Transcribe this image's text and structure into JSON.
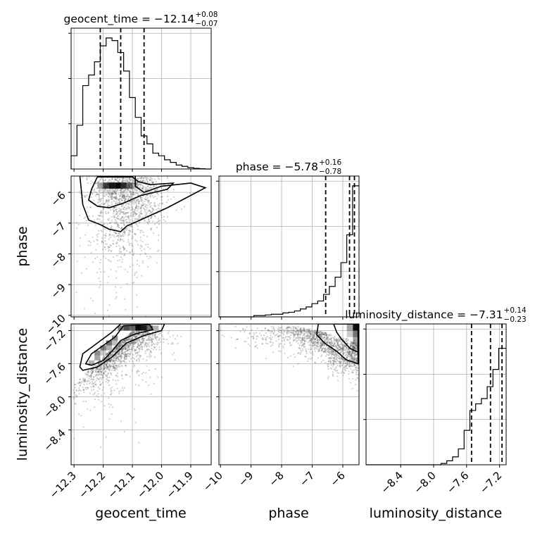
{
  "chart_data": {
    "type": "corner",
    "parameters": [
      "geocent_time",
      "phase",
      "luminosity_distance"
    ],
    "axis_labels": {
      "x": [
        "geocent_time",
        "phase",
        "luminosity_distance"
      ],
      "y": [
        "phase",
        "luminosity_distance"
      ]
    },
    "ranges": {
      "geocent_time": [
        -12.31,
        -11.83
      ],
      "phase": [
        -10.05,
        -5.47
      ],
      "luminosity_distance": [
        -8.82,
        -7.12
      ]
    },
    "ticks": {
      "geocent_time": {
        "values": [
          -12.3,
          -12.2,
          -12.1,
          -12.0,
          -11.9
        ],
        "labels": [
          "−12.3",
          "−12.2",
          "−12.1",
          "−12.0",
          "−11.9"
        ]
      },
      "phase": {
        "values": [
          -10,
          -9,
          -8,
          -7,
          -6
        ],
        "labels": [
          "−10",
          "−9",
          "−8",
          "−7",
          "−6"
        ]
      },
      "luminosity_distance": {
        "values": [
          -8.4,
          -8.0,
          -7.6,
          -7.2
        ],
        "labels": [
          "−8.4",
          "−8.0",
          "−7.6",
          "−7.2"
        ]
      }
    },
    "titles": [
      {
        "param": "geocent_time",
        "main": "geocent_time = −12.14",
        "plus": "+0.08",
        "minus": "−0.07"
      },
      {
        "param": "phase",
        "main": "phase = −5.78",
        "plus": "+0.16",
        "minus": "−0.78"
      },
      {
        "param": "luminosity_distance",
        "main": "luminosity_distance = −7.31",
        "plus": "+0.14",
        "minus": "−0.23"
      }
    ],
    "quantiles": {
      "geocent_time": [
        -12.21,
        -12.14,
        -12.06
      ],
      "phase": [
        -6.56,
        -5.78,
        -5.62
      ],
      "luminosity_distance": [
        -7.54,
        -7.31,
        -7.17
      ]
    },
    "histograms": {
      "geocent_time": {
        "bin_edges": [
          -12.31,
          -12.29,
          -12.27,
          -12.25,
          -12.23,
          -12.21,
          -12.19,
          -12.17,
          -12.15,
          -12.13,
          -12.11,
          -12.09,
          -12.07,
          -12.05,
          -12.03,
          -12.01,
          -11.99,
          -11.97,
          -11.95,
          -11.93,
          -11.91,
          -11.89,
          -11.87,
          -11.85,
          -11.83
        ],
        "counts": [
          0.1,
          0.33,
          0.63,
          0.71,
          0.81,
          0.93,
          0.99,
          0.97,
          0.88,
          0.74,
          0.54,
          0.39,
          0.25,
          0.19,
          0.12,
          0.1,
          0.07,
          0.05,
          0.03,
          0.02,
          0.01,
          0.005,
          0.002,
          0.0
        ]
      },
      "phase": {
        "bin_edges": [
          -10.05,
          -9.86,
          -9.67,
          -9.48,
          -9.29,
          -9.1,
          -8.91,
          -8.72,
          -8.53,
          -8.34,
          -8.15,
          -7.96,
          -7.77,
          -7.58,
          -7.39,
          -7.2,
          -7.01,
          -6.82,
          -6.63,
          -6.44,
          -6.25,
          -6.06,
          -5.87,
          -5.68,
          -5.47
        ],
        "counts": [
          0.0,
          0.0,
          0.0,
          0.0,
          0.0,
          0.0,
          0.01,
          0.01,
          0.015,
          0.02,
          0.02,
          0.03,
          0.035,
          0.045,
          0.06,
          0.075,
          0.1,
          0.12,
          0.17,
          0.23,
          0.3,
          0.41,
          0.62,
          0.99
        ]
      },
      "luminosity_distance": {
        "bin_edges": [
          -8.82,
          -8.75,
          -8.68,
          -8.61,
          -8.54,
          -8.47,
          -8.4,
          -8.33,
          -8.26,
          -8.19,
          -8.12,
          -8.05,
          -7.98,
          -7.91,
          -7.84,
          -7.77,
          -7.7,
          -7.63,
          -7.56,
          -7.49,
          -7.42,
          -7.35,
          -7.28,
          -7.21,
          -7.14,
          -7.12
        ],
        "counts": [
          0.0,
          0.0,
          0.0,
          0.0,
          0.0,
          0.0,
          0.0,
          0.0,
          0.0,
          0.0,
          0.0,
          0.0,
          0.0,
          0.01,
          0.03,
          0.06,
          0.12,
          0.26,
          0.41,
          0.46,
          0.5,
          0.59,
          0.72,
          0.88,
          0.88
        ]
      }
    },
    "pairs": [
      {
        "x": "geocent_time",
        "y": "phase"
      },
      {
        "x": "geocent_time",
        "y": "luminosity_distance"
      },
      {
        "x": "phase",
        "y": "luminosity_distance"
      }
    ],
    "grid": true
  }
}
